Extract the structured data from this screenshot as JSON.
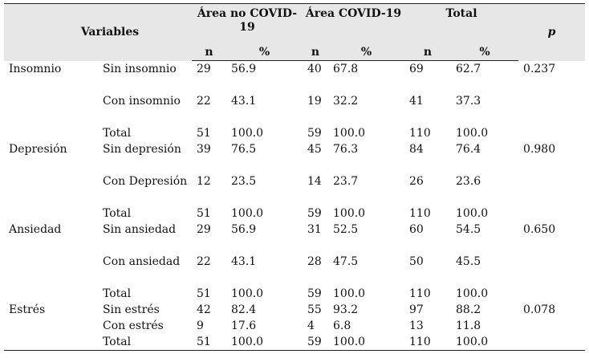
{
  "header": {
    "variables": "Variables",
    "group1": "Área no COVID-19",
    "group2": "Área COVID-19",
    "group3": "Total",
    "p": "p",
    "n": "n",
    "pct": "%"
  },
  "rows": [
    {
      "var": "Insomnio",
      "sub": "Sin insomnio",
      "n1": "29",
      "p1": "56.9",
      "n2": "40",
      "p2": "67.8",
      "n3": "69",
      "p3": "62.7",
      "p": "0.237"
    },
    {
      "var": "",
      "sub": "Con insomnio",
      "n1": "22",
      "p1": "43.1",
      "n2": "19",
      "p2": "32.2",
      "n3": "41",
      "p3": "37.3",
      "p": ""
    },
    {
      "var": "",
      "sub": "Total",
      "n1": "51",
      "p1": "100.0",
      "n2": "59",
      "p2": "100.0",
      "n3": "110",
      "p3": "100.0",
      "p": ""
    },
    {
      "var": "Depresión",
      "sub": "Sin depresión",
      "n1": "39",
      "p1": "76.5",
      "n2": "45",
      "p2": "76.3",
      "n3": "84",
      "p3": "76.4",
      "p": "0.980"
    },
    {
      "var": "",
      "sub": "Con Depresión",
      "n1": "12",
      "p1": "23.5",
      "n2": "14",
      "p2": "23.7",
      "n3": "26",
      "p3": "23.6",
      "p": ""
    },
    {
      "var": "",
      "sub": "Total",
      "n1": "51",
      "p1": "100.0",
      "n2": "59",
      "p2": "100.0",
      "n3": "110",
      "p3": "100.0",
      "p": ""
    },
    {
      "var": "Ansiedad",
      "sub": "Sin ansiedad",
      "n1": "29",
      "p1": "56.9",
      "n2": "31",
      "p2": "52.5",
      "n3": "60",
      "p3": "54.5",
      "p": "0.650"
    },
    {
      "var": "",
      "sub": "Con ansiedad",
      "n1": "22",
      "p1": "43.1",
      "n2": "28",
      "p2": "47.5",
      "n3": "50",
      "p3": "45.5",
      "p": ""
    },
    {
      "var": "",
      "sub": "Total",
      "n1": "51",
      "p1": "100.0",
      "n2": "59",
      "p2": "100.0",
      "n3": "110",
      "p3": "100.0",
      "p": ""
    },
    {
      "var": "Estrés",
      "sub": "Sin estrés",
      "n1": "42",
      "p1": "82.4",
      "n2": "55",
      "p2": "93.2",
      "n3": "97",
      "p3": "88.2",
      "p": "0.078"
    },
    {
      "var": "",
      "sub": "Con estrés",
      "n1": "9",
      "p1": "17.6",
      "n2": "4",
      "p2": "6.8",
      "n3": "13",
      "p3": "11.8",
      "p": ""
    },
    {
      "var": "",
      "sub": "Total",
      "n1": "51",
      "p1": "100.0",
      "n2": "59",
      "p2": "100.0",
      "n3": "110",
      "p3": "100.0",
      "p": ""
    }
  ]
}
